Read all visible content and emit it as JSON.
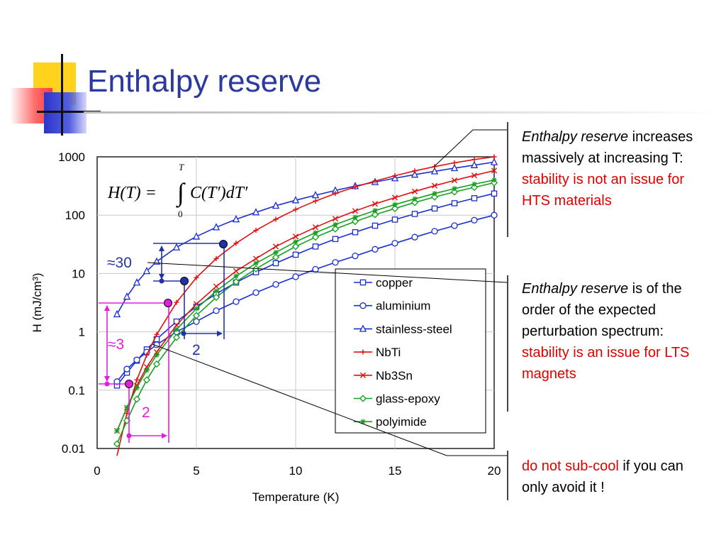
{
  "slide": {
    "title": "Enthalpy reserve",
    "notes": [
      {
        "italic": "Enthalpy reserve",
        "plain": " increases massively at increasing T: ",
        "red": "stability is not an issue for HTS materials"
      },
      {
        "italic": "Enthalpy reserve",
        "plain": " is of the order of the expected perturbation spectrum: ",
        "red": "stability is an issue for LTS magnets"
      },
      {
        "red": "do not sub-cool",
        "plain": " if you can only avoid it !"
      }
    ],
    "annotations": {
      "blue_ratio": "≈30",
      "blue_delta": "2",
      "magenta_ratio": "≈3",
      "magenta_delta": "2"
    },
    "formula": {
      "lhs": "H(T) =",
      "upper": "T",
      "lower": "0",
      "rhs": "C(T′)dT′"
    }
  },
  "chart_data": {
    "type": "line",
    "xlabel": "Temperature (K)",
    "ylabel": "H (mJ/cm³)",
    "xlim": [
      0,
      20
    ],
    "ylim": [
      0.01,
      1000
    ],
    "yscale": "log",
    "xticks": [
      "0",
      "5",
      "10",
      "15",
      "20"
    ],
    "yticks": [
      "0.01",
      "0.1",
      "1",
      "10",
      "100",
      "1000"
    ],
    "grid": true,
    "legend_position": "bottom-right",
    "x": [
      1,
      1.5,
      2,
      2.5,
      3,
      4,
      5,
      6,
      7,
      8,
      9,
      10,
      11,
      12,
      13,
      14,
      15,
      16,
      17,
      18,
      19,
      20
    ],
    "series": [
      {
        "name": "copper",
        "color": "#1a2fd0",
        "marker": "square",
        "values": [
          0.12,
          0.2,
          0.32,
          0.5,
          0.75,
          1.5,
          2.7,
          4.5,
          7,
          10.5,
          15,
          21,
          29,
          39,
          51,
          66,
          84,
          105,
          130,
          160,
          195,
          235
        ]
      },
      {
        "name": "aluminium",
        "color": "#1a2fd0",
        "marker": "circle",
        "values": [
          0.14,
          0.23,
          0.33,
          0.45,
          0.6,
          1.0,
          1.5,
          2.3,
          3.3,
          4.7,
          6.5,
          8.8,
          11.8,
          15.5,
          20,
          26,
          33,
          42,
          53,
          66,
          82,
          100
        ]
      },
      {
        "name": "stainless-steel",
        "color": "#1a2fd0",
        "marker": "triangle",
        "values": [
          2,
          4,
          7,
          11,
          16,
          28,
          43,
          62,
          85,
          112,
          145,
          180,
          220,
          265,
          315,
          370,
          430,
          495,
          565,
          640,
          720,
          810
        ]
      },
      {
        "name": "NbTi",
        "color": "#e01010",
        "marker": "plus",
        "values": [
          0.007,
          0.04,
          0.15,
          0.4,
          0.9,
          3.2,
          8.5,
          18,
          33,
          55,
          85,
          125,
          175,
          235,
          305,
          385,
          475,
          575,
          680,
          790,
          900,
          1000
        ]
      },
      {
        "name": "Nb3Sn",
        "color": "#e01010",
        "marker": "x",
        "values": [
          0.02,
          0.05,
          0.12,
          0.25,
          0.45,
          1.3,
          3,
          6,
          11,
          18,
          29,
          43,
          62,
          87,
          118,
          156,
          200,
          255,
          320,
          395,
          480,
          580
        ]
      },
      {
        "name": "glass-epoxy",
        "color": "#16a020",
        "marker": "diamond",
        "values": [
          0.012,
          0.03,
          0.07,
          0.15,
          0.28,
          0.8,
          1.9,
          3.9,
          7.2,
          12,
          19,
          29,
          42,
          58,
          78,
          102,
          130,
          165,
          205,
          250,
          300,
          360
        ]
      },
      {
        "name": "polyimide",
        "color": "#16a020",
        "marker": "asterisk",
        "values": [
          0.02,
          0.05,
          0.11,
          0.22,
          0.4,
          1.1,
          2.5,
          5,
          9,
          15,
          23,
          35,
          50,
          69,
          92,
          120,
          152,
          190,
          235,
          285,
          340,
          400
        ]
      }
    ]
  }
}
